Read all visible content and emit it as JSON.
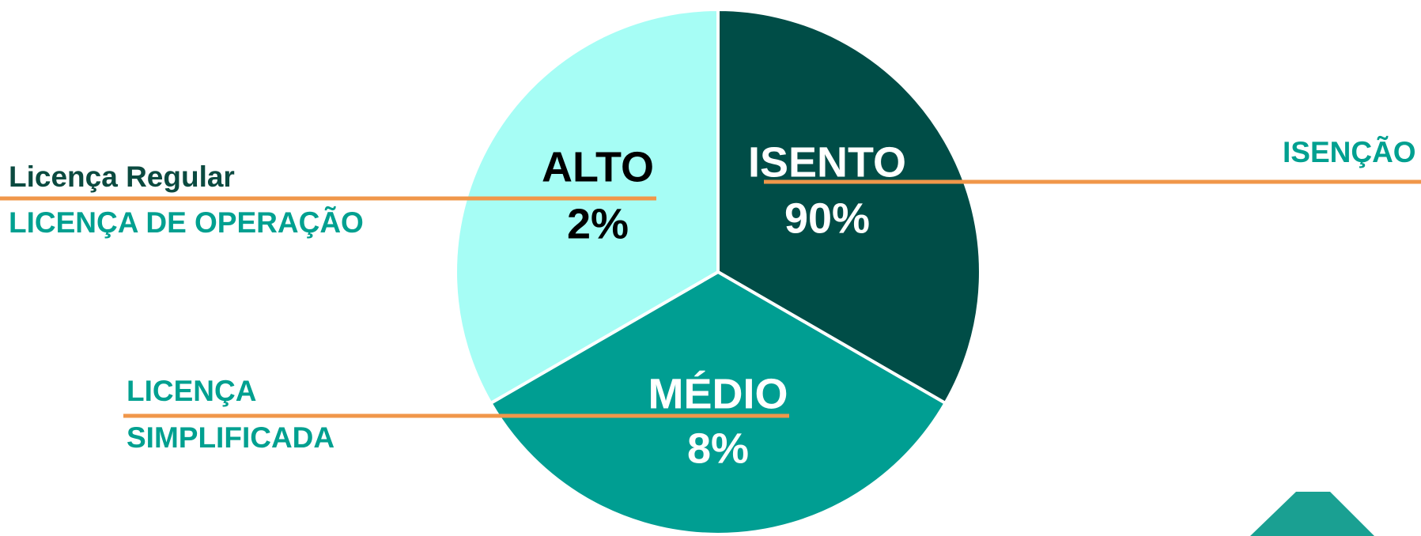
{
  "segments": [
    {
      "label": "ISENTO",
      "percent": "90%",
      "license": [
        "ISENÇÃO"
      ]
    },
    {
      "label": "MÉDIO",
      "percent": "8%",
      "license": [
        "LICENÇA",
        "SIMPLIFICADA"
      ]
    },
    {
      "label": "ALTO",
      "percent": "2%",
      "title": "Licença Regular",
      "license": [
        "LICENÇA DE OPERAÇÃO"
      ]
    }
  ]
}
